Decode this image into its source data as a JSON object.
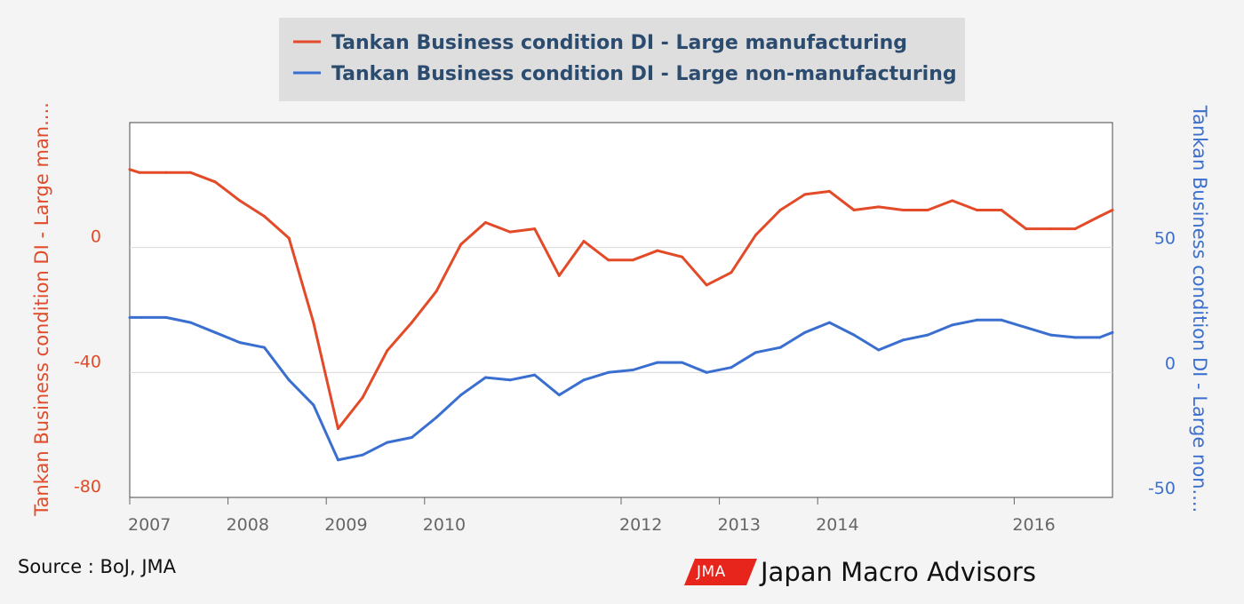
{
  "chart_data": {
    "type": "line",
    "legend": {
      "position": "top-center",
      "entries": [
        "Tankan Business condition DI - Large manufacturing",
        "Tankan Business condition DI - Large non-manufacturing"
      ]
    },
    "colors": {
      "left": "#e24a28",
      "right": "#3a6fd0"
    },
    "x_ticks": [
      "2007",
      "2008",
      "2009",
      "2010",
      "2012",
      "2013",
      "2014",
      "2016"
    ],
    "xlim": [
      2007.0,
      2017.0
    ],
    "left_axis": {
      "title": "Tankan Business condition DI - Large man....",
      "ticks": [
        "0",
        "-40",
        "-80"
      ],
      "range": [
        -80,
        40
      ]
    },
    "right_axis": {
      "title": "Tankan Business condition DI - Large non....",
      "ticks": [
        "50",
        "0",
        "-50"
      ],
      "range": [
        -50,
        100
      ]
    },
    "series": [
      {
        "name": "Tankan Business condition DI - Large manufacturing",
        "axis": "left",
        "color": "#e24a28",
        "points": [
          [
            2007.0,
            25
          ],
          [
            2007.1,
            24
          ],
          [
            2007.37,
            24
          ],
          [
            2007.62,
            24
          ],
          [
            2007.87,
            21
          ],
          [
            2008.12,
            15
          ],
          [
            2008.37,
            10
          ],
          [
            2008.62,
            3
          ],
          [
            2008.87,
            -24
          ],
          [
            2009.12,
            -58
          ],
          [
            2009.37,
            -48
          ],
          [
            2009.62,
            -33
          ],
          [
            2009.87,
            -24
          ],
          [
            2010.12,
            -14
          ],
          [
            2010.37,
            1
          ],
          [
            2010.62,
            8
          ],
          [
            2010.87,
            5
          ],
          [
            2011.12,
            6
          ],
          [
            2011.37,
            -9
          ],
          [
            2011.62,
            2
          ],
          [
            2011.87,
            -4
          ],
          [
            2012.12,
            -4
          ],
          [
            2012.37,
            -1
          ],
          [
            2012.62,
            -3
          ],
          [
            2012.87,
            -12
          ],
          [
            2013.12,
            -8
          ],
          [
            2013.37,
            4
          ],
          [
            2013.62,
            12
          ],
          [
            2013.87,
            17
          ],
          [
            2014.12,
            18
          ],
          [
            2014.37,
            12
          ],
          [
            2014.62,
            13
          ],
          [
            2014.87,
            12
          ],
          [
            2015.12,
            12
          ],
          [
            2015.37,
            15
          ],
          [
            2015.62,
            12
          ],
          [
            2015.87,
            12
          ],
          [
            2016.12,
            6
          ],
          [
            2016.37,
            6
          ],
          [
            2016.62,
            6
          ],
          [
            2016.87,
            10
          ],
          [
            2017.0,
            12
          ]
        ]
      },
      {
        "name": "Tankan Business condition DI - Large non-manufacturing",
        "axis": "right",
        "color": "#3a6fd0",
        "points": [
          [
            2007.0,
            22
          ],
          [
            2007.12,
            22
          ],
          [
            2007.37,
            22
          ],
          [
            2007.62,
            20
          ],
          [
            2007.87,
            16
          ],
          [
            2008.12,
            12
          ],
          [
            2008.37,
            10
          ],
          [
            2008.62,
            -3
          ],
          [
            2008.87,
            -13
          ],
          [
            2009.12,
            -35
          ],
          [
            2009.37,
            -33
          ],
          [
            2009.62,
            -28
          ],
          [
            2009.87,
            -26
          ],
          [
            2010.12,
            -18
          ],
          [
            2010.37,
            -9
          ],
          [
            2010.62,
            -2
          ],
          [
            2010.87,
            -3
          ],
          [
            2011.12,
            -1
          ],
          [
            2011.37,
            -9
          ],
          [
            2011.62,
            -3
          ],
          [
            2011.87,
            0
          ],
          [
            2012.12,
            1
          ],
          [
            2012.37,
            4
          ],
          [
            2012.62,
            4
          ],
          [
            2012.87,
            0
          ],
          [
            2013.12,
            2
          ],
          [
            2013.37,
            8
          ],
          [
            2013.62,
            10
          ],
          [
            2013.87,
            16
          ],
          [
            2014.12,
            20
          ],
          [
            2014.37,
            15
          ],
          [
            2014.62,
            9
          ],
          [
            2014.87,
            13
          ],
          [
            2015.12,
            15
          ],
          [
            2015.37,
            19
          ],
          [
            2015.62,
            21
          ],
          [
            2015.87,
            21
          ],
          [
            2016.12,
            18
          ],
          [
            2016.37,
            15
          ],
          [
            2016.62,
            14
          ],
          [
            2016.87,
            14
          ],
          [
            2017.0,
            16
          ]
        ]
      }
    ]
  },
  "footer": {
    "source": "Source : BoJ, JMA",
    "brand_mark": "JMA",
    "brand_name": "Japan Macro Advisors"
  }
}
